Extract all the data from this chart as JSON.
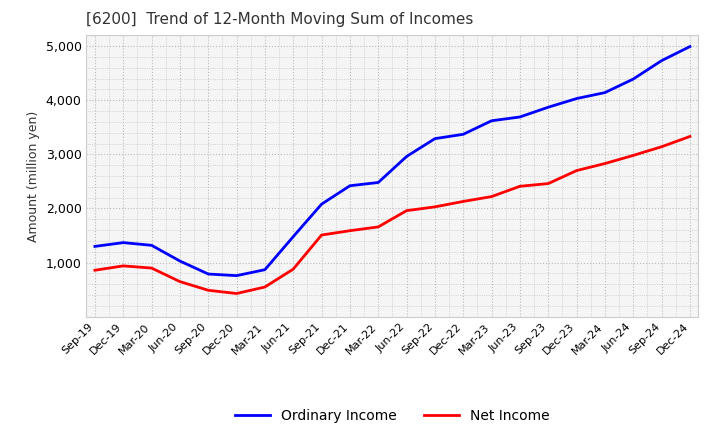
{
  "title": "[6200]  Trend of 12-Month Moving Sum of Incomes",
  "ylabel": "Amount (million yen)",
  "ylim": [
    0,
    5200
  ],
  "yticks": [
    1000,
    2000,
    3000,
    4000,
    5000
  ],
  "plot_bg_color": "#f5f5f5",
  "fig_bg_color": "#ffffff",
  "grid_color": "#bbbbbb",
  "title_color": "#333333",
  "line_blue": "#0000ff",
  "line_red": "#ff0000",
  "legend_labels": [
    "Ordinary Income",
    "Net Income"
  ],
  "x_labels": [
    "Sep-19",
    "Dec-19",
    "Mar-20",
    "Jun-20",
    "Sep-20",
    "Dec-20",
    "Mar-21",
    "Jun-21",
    "Sep-21",
    "Dec-21",
    "Mar-22",
    "Jun-22",
    "Sep-22",
    "Dec-22",
    "Mar-23",
    "Jun-23",
    "Sep-23",
    "Dec-23",
    "Mar-24",
    "Jun-24",
    "Sep-24",
    "Dec-24"
  ],
  "ordinary_income": [
    1300,
    1370,
    1320,
    1030,
    790,
    760,
    870,
    1480,
    2080,
    2420,
    2480,
    2960,
    3290,
    3370,
    3620,
    3690,
    3870,
    4030,
    4140,
    4390,
    4730,
    4990
  ],
  "net_income": [
    860,
    940,
    900,
    650,
    490,
    430,
    550,
    880,
    1510,
    1590,
    1660,
    1960,
    2030,
    2130,
    2220,
    2410,
    2460,
    2700,
    2830,
    2980,
    3140,
    3330
  ]
}
